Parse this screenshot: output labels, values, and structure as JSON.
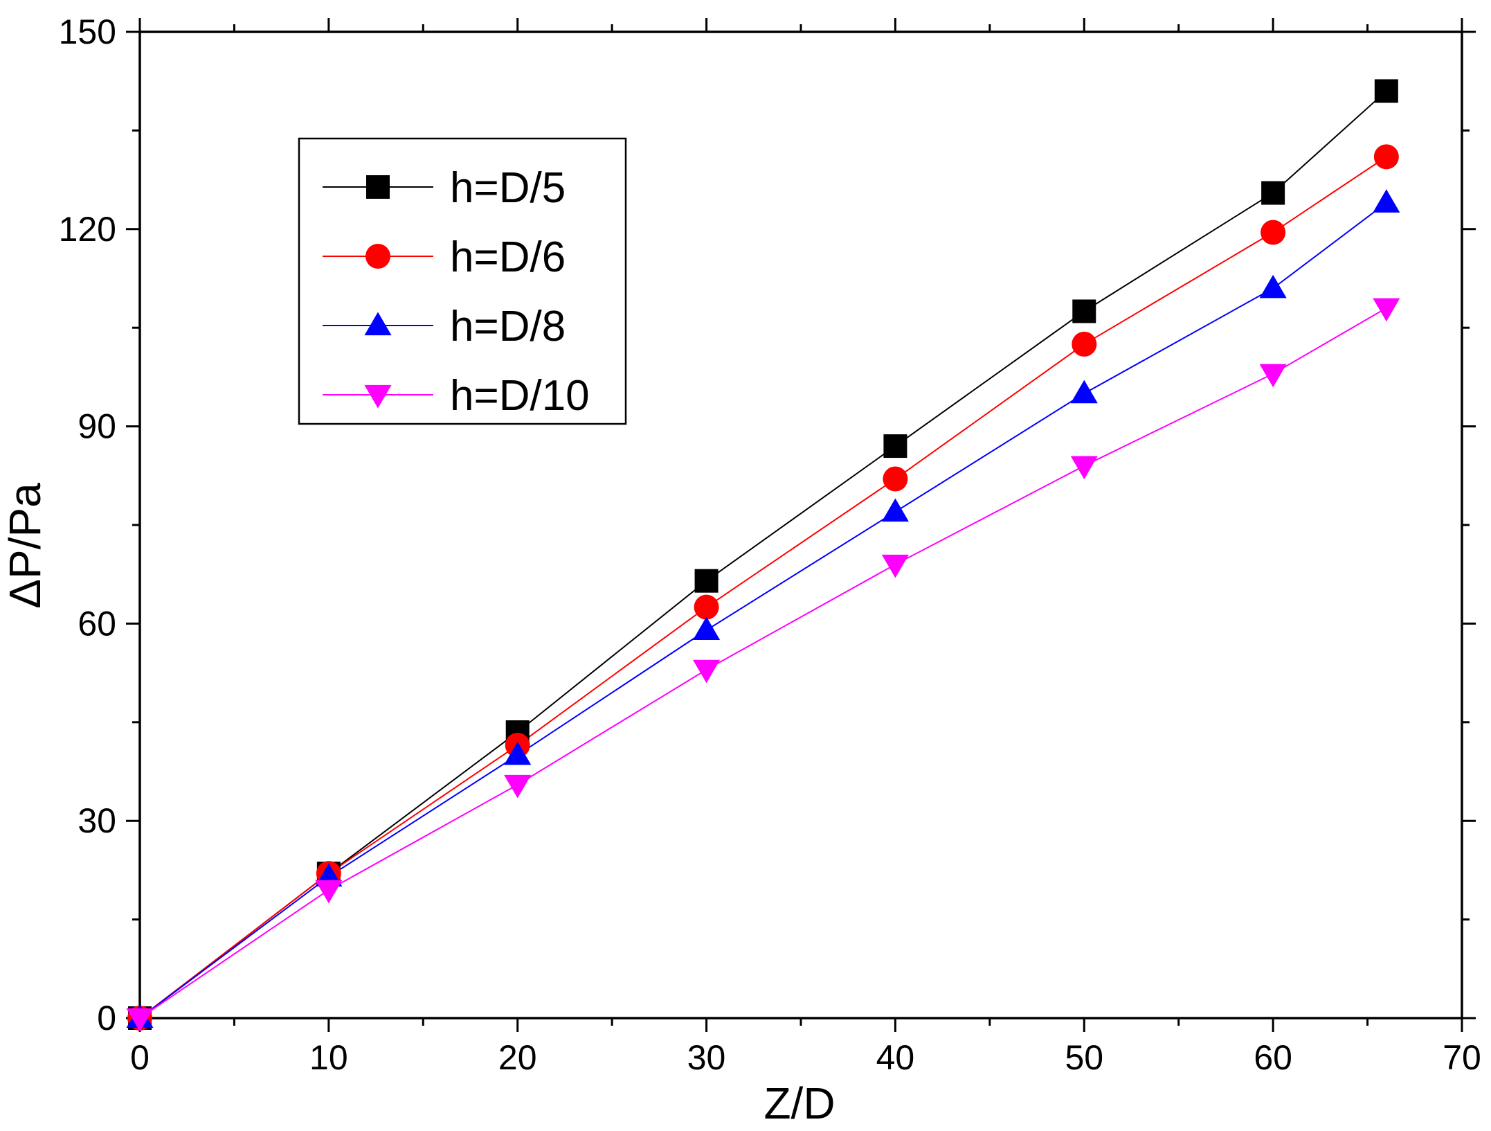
{
  "chart_data": {
    "type": "line",
    "title": "",
    "xlabel": "Z/D",
    "ylabel": "ΔP/Pa",
    "xlim": [
      0,
      70
    ],
    "ylim": [
      0,
      150
    ],
    "x_ticks": [
      "0",
      "10",
      "20",
      "30",
      "40",
      "50",
      "60",
      "70"
    ],
    "y_ticks": [
      "0",
      "30",
      "60",
      "90",
      "120",
      "150"
    ],
    "x_tick_values": [
      0,
      10,
      20,
      30,
      40,
      50,
      60,
      70
    ],
    "y_tick_values": [
      0,
      30,
      60,
      90,
      120,
      150
    ],
    "x_minor_step": 5,
    "y_minor_step": 15,
    "grid": false,
    "legend_position": "upper-left",
    "x": [
      0,
      10,
      20,
      30,
      40,
      50,
      60,
      66
    ],
    "series": [
      {
        "name": "h=D/5",
        "color": "#000000",
        "marker": "square",
        "values": [
          0,
          22,
          43.5,
          66.5,
          87,
          107.5,
          125.5,
          141
        ]
      },
      {
        "name": "h=D/6",
        "color": "#ff0000",
        "marker": "circle",
        "values": [
          0,
          22,
          41.5,
          62.5,
          82,
          102.5,
          119.5,
          131
        ]
      },
      {
        "name": "h=D/8",
        "color": "#0000ff",
        "marker": "triangle-up",
        "values": [
          0,
          21.5,
          40,
          59,
          77,
          95,
          111,
          124
        ]
      },
      {
        "name": "h=D/10",
        "color": "#ff00ff",
        "marker": "triangle-down",
        "values": [
          0,
          19.5,
          35.5,
          53,
          69,
          84,
          98,
          108
        ]
      }
    ]
  }
}
